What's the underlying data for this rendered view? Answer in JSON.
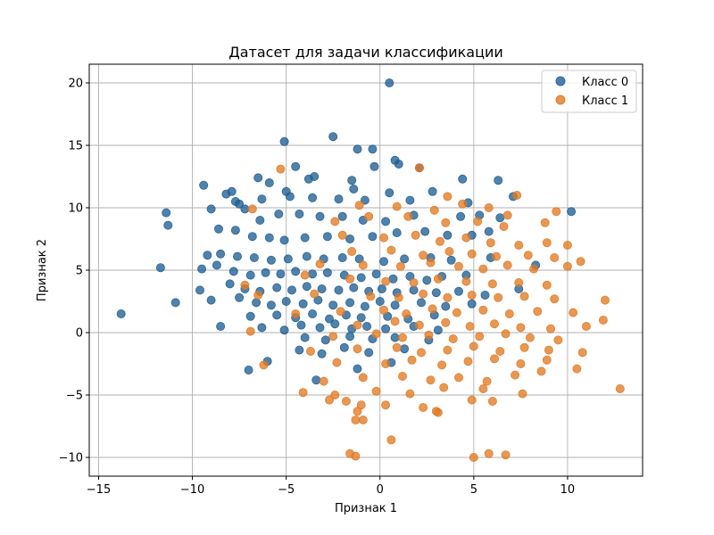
{
  "chart_data": {
    "type": "scatter",
    "title": "Датасет для задачи классификации",
    "xlabel": "Признак 1",
    "ylabel": "Признак 2",
    "xlim": [
      -15.5,
      14.0
    ],
    "ylim": [
      -11.5,
      21.5
    ],
    "xticks": [
      -15,
      -10,
      -5,
      0,
      5,
      10
    ],
    "yticks": [
      -10,
      -5,
      0,
      5,
      10,
      15,
      20
    ],
    "x_tick_labels": [
      "−15",
      "−10",
      "−5",
      "0",
      "5",
      "10"
    ],
    "y_tick_labels": [
      "−10",
      "−5",
      "0",
      "5",
      "10",
      "15",
      "20"
    ],
    "grid": true,
    "legend_position": "top-right",
    "series": [
      {
        "name": "Класс 0",
        "color": "#1f5f93",
        "points": [
          [
            0.5,
            20.0
          ],
          [
            -2.5,
            15.7
          ],
          [
            -5.1,
            15.3
          ],
          [
            -1.2,
            14.7
          ],
          [
            -0.4,
            14.7
          ],
          [
            0.8,
            13.8
          ],
          [
            -4.5,
            13.3
          ],
          [
            2.1,
            13.2
          ],
          [
            -0.3,
            13.3
          ],
          [
            1.0,
            13.5
          ],
          [
            -6.5,
            12.4
          ],
          [
            -5.9,
            12.0
          ],
          [
            -3.5,
            12.5
          ],
          [
            -3.8,
            12.3
          ],
          [
            -1.5,
            12.2
          ],
          [
            4.4,
            12.3
          ],
          [
            6.3,
            12.2
          ],
          [
            -8.2,
            11.1
          ],
          [
            -9.4,
            11.8
          ],
          [
            -7.9,
            11.3
          ],
          [
            -5.0,
            11.3
          ],
          [
            -1.4,
            11.5
          ],
          [
            0.5,
            11.2
          ],
          [
            2.8,
            11.3
          ],
          [
            -11.4,
            9.6
          ],
          [
            -11.3,
            8.6
          ],
          [
            -7.7,
            10.5
          ],
          [
            -7.5,
            10.3
          ],
          [
            -6.3,
            10.7
          ],
          [
            -4.8,
            10.9
          ],
          [
            -3.6,
            10.8
          ],
          [
            -2.2,
            10.7
          ],
          [
            -0.8,
            10.6
          ],
          [
            1.6,
            10.6
          ],
          [
            4.7,
            10.4
          ],
          [
            7.1,
            10.9
          ],
          [
            10.2,
            9.7
          ],
          [
            -9.0,
            9.9
          ],
          [
            -7.2,
            9.9
          ],
          [
            -6.4,
            9.0
          ],
          [
            -5.4,
            9.5
          ],
          [
            -4.3,
            9.5
          ],
          [
            -3.2,
            9.3
          ],
          [
            -2.0,
            9.3
          ],
          [
            -0.9,
            9.0
          ],
          [
            0.3,
            8.9
          ],
          [
            1.8,
            9.4
          ],
          [
            4.3,
            9.3
          ],
          [
            5.3,
            9.4
          ],
          [
            6.4,
            9.2
          ],
          [
            -8.6,
            8.3
          ],
          [
            -7.7,
            8.2
          ],
          [
            -6.8,
            7.7
          ],
          [
            -5.9,
            7.6
          ],
          [
            -5.1,
            7.4
          ],
          [
            -4.0,
            7.6
          ],
          [
            -2.8,
            7.7
          ],
          [
            -1.6,
            7.5
          ],
          [
            -0.4,
            7.7
          ],
          [
            0.9,
            8.0
          ],
          [
            2.4,
            8.1
          ],
          [
            3.6,
            7.8
          ],
          [
            4.9,
            7.8
          ],
          [
            5.8,
            8.1
          ],
          [
            -9.2,
            6.2
          ],
          [
            -8.5,
            6.3
          ],
          [
            -7.6,
            6.1
          ],
          [
            -6.7,
            6.0
          ],
          [
            -5.8,
            5.8
          ],
          [
            -4.9,
            5.9
          ],
          [
            -3.9,
            6.1
          ],
          [
            -3.0,
            5.9
          ],
          [
            -2.0,
            6.0
          ],
          [
            -1.1,
            5.9
          ],
          [
            0.2,
            5.7
          ],
          [
            1.3,
            5.9
          ],
          [
            2.7,
            6.0
          ],
          [
            3.8,
            5.8
          ],
          [
            5.9,
            6.0
          ],
          [
            8.3,
            5.4
          ],
          [
            -11.7,
            5.2
          ],
          [
            -9.5,
            5.1
          ],
          [
            -8.7,
            5.4
          ],
          [
            -7.8,
            4.9
          ],
          [
            -6.9,
            4.6
          ],
          [
            -6.1,
            4.8
          ],
          [
            -5.3,
            4.7
          ],
          [
            -4.5,
            4.9
          ],
          [
            -3.6,
            4.7
          ],
          [
            -2.8,
            4.8
          ],
          [
            -1.9,
            4.6
          ],
          [
            -1.0,
            4.4
          ],
          [
            -0.2,
            4.7
          ],
          [
            0.7,
            4.3
          ],
          [
            1.6,
            4.5
          ],
          [
            2.5,
            4.2
          ],
          [
            3.3,
            4.5
          ],
          [
            4.6,
            4.6
          ],
          [
            -9.6,
            3.4
          ],
          [
            -8.0,
            3.9
          ],
          [
            -7.2,
            3.5
          ],
          [
            -6.4,
            3.3
          ],
          [
            -5.5,
            3.6
          ],
          [
            -4.7,
            3.4
          ],
          [
            -3.9,
            3.7
          ],
          [
            -3.1,
            3.5
          ],
          [
            -2.2,
            3.4
          ],
          [
            -1.4,
            3.6
          ],
          [
            -0.6,
            3.3
          ],
          [
            0.1,
            3.5
          ],
          [
            0.9,
            3.2
          ],
          [
            1.8,
            3.4
          ],
          [
            3.0,
            3.2
          ],
          [
            4.2,
            3.3
          ],
          [
            5.6,
            3.0
          ],
          [
            7.4,
            3.5
          ],
          [
            -10.9,
            2.4
          ],
          [
            -9.0,
            2.6
          ],
          [
            -7.5,
            2.8
          ],
          [
            -6.6,
            2.4
          ],
          [
            -5.8,
            2.2
          ],
          [
            -5.0,
            2.5
          ],
          [
            -4.1,
            2.3
          ],
          [
            -3.3,
            2.6
          ],
          [
            -2.5,
            2.2
          ],
          [
            -1.6,
            2.4
          ],
          [
            -0.8,
            2.1
          ],
          [
            0.0,
            2.5
          ],
          [
            0.8,
            2.2
          ],
          [
            2.2,
            2.4
          ],
          [
            3.5,
            2.1
          ],
          [
            4.9,
            2.3
          ],
          [
            -13.8,
            1.5
          ],
          [
            -6.9,
            1.3
          ],
          [
            -5.5,
            1.4
          ],
          [
            -4.5,
            1.2
          ],
          [
            -3.6,
            1.5
          ],
          [
            -2.7,
            1.1
          ],
          [
            -1.8,
            1.4
          ],
          [
            -1.0,
            1.2
          ],
          [
            0.4,
            1.3
          ],
          [
            1.5,
            1.1
          ],
          [
            2.9,
            1.4
          ],
          [
            -8.5,
            0.5
          ],
          [
            -6.3,
            0.4
          ],
          [
            -5.1,
            0.2
          ],
          [
            -4.2,
            0.6
          ],
          [
            -3.2,
            0.4
          ],
          [
            -2.4,
            0.7
          ],
          [
            -1.5,
            0.3
          ],
          [
            -0.7,
            0.5
          ],
          [
            0.3,
            0.3
          ],
          [
            1.8,
            0.5
          ],
          [
            3.1,
            0.2
          ],
          [
            -4.0,
            -0.4
          ],
          [
            -2.9,
            -0.6
          ],
          [
            -1.6,
            -0.3
          ],
          [
            -0.4,
            -0.5
          ],
          [
            0.8,
            -0.4
          ],
          [
            2.6,
            -0.6
          ],
          [
            -6.0,
            -2.3
          ],
          [
            -4.3,
            -1.4
          ],
          [
            -3.1,
            -1.7
          ],
          [
            -1.9,
            -1.2
          ],
          [
            -0.6,
            -1.6
          ],
          [
            1.3,
            -1.3
          ],
          [
            -7.0,
            -3.0
          ],
          [
            -3.4,
            -3.8
          ],
          [
            -1.2,
            -2.9
          ],
          [
            0.6,
            -2.4
          ]
        ]
      },
      {
        "name": "Класс 1",
        "color": "#e07b24",
        "points": [
          [
            -5.3,
            13.1
          ],
          [
            2.1,
            13.2
          ],
          [
            3.6,
            10.9
          ],
          [
            4.4,
            10.3
          ],
          [
            7.3,
            11.0
          ],
          [
            -6.8,
            9.9
          ],
          [
            -1.1,
            10.2
          ],
          [
            0.9,
            10.1
          ],
          [
            2.9,
            9.8
          ],
          [
            5.8,
            10.0
          ],
          [
            6.8,
            9.4
          ],
          [
            9.4,
            9.7
          ],
          [
            -2.4,
            8.9
          ],
          [
            -0.6,
            9.3
          ],
          [
            1.5,
            9.3
          ],
          [
            3.5,
            8.8
          ],
          [
            5.2,
            8.9
          ],
          [
            6.6,
            8.5
          ],
          [
            8.8,
            8.8
          ],
          [
            -2.0,
            7.8
          ],
          [
            0.2,
            7.6
          ],
          [
            1.9,
            7.8
          ],
          [
            3.2,
            7.3
          ],
          [
            4.6,
            7.6
          ],
          [
            5.9,
            7.2
          ],
          [
            7.4,
            7.0
          ],
          [
            8.9,
            7.2
          ],
          [
            10.0,
            7.0
          ],
          [
            -1.5,
            6.5
          ],
          [
            0.6,
            6.6
          ],
          [
            2.3,
            6.2
          ],
          [
            3.7,
            6.5
          ],
          [
            4.9,
            6.3
          ],
          [
            6.2,
            6.1
          ],
          [
            7.9,
            6.2
          ],
          [
            9.3,
            6.0
          ],
          [
            10.7,
            5.7
          ],
          [
            -3.2,
            5.5
          ],
          [
            -0.9,
            5.4
          ],
          [
            1.1,
            5.3
          ],
          [
            2.7,
            5.6
          ],
          [
            4.2,
            5.3
          ],
          [
            5.5,
            5.1
          ],
          [
            6.8,
            5.4
          ],
          [
            8.2,
            5.1
          ],
          [
            10.0,
            5.3
          ],
          [
            -7.2,
            3.8
          ],
          [
            -4.0,
            4.6
          ],
          [
            -1.6,
            4.3
          ],
          [
            0.3,
            4.1
          ],
          [
            1.8,
            4.0
          ],
          [
            3.1,
            4.3
          ],
          [
            4.6,
            4.1
          ],
          [
            6.0,
            3.9
          ],
          [
            7.4,
            4.0
          ],
          [
            8.9,
            3.8
          ],
          [
            -6.5,
            3.0
          ],
          [
            -3.5,
            3.1
          ],
          [
            -0.5,
            2.9
          ],
          [
            1.0,
            2.8
          ],
          [
            2.3,
            3.1
          ],
          [
            3.6,
            2.8
          ],
          [
            4.9,
            3.0
          ],
          [
            6.3,
            2.8
          ],
          [
            7.7,
            2.9
          ],
          [
            9.3,
            2.7
          ],
          [
            12.0,
            2.6
          ],
          [
            -4.5,
            1.5
          ],
          [
            -2.1,
            1.7
          ],
          [
            0.2,
            1.8
          ],
          [
            1.4,
            1.5
          ],
          [
            2.8,
            1.9
          ],
          [
            4.1,
            1.6
          ],
          [
            5.5,
            1.8
          ],
          [
            6.9,
            1.5
          ],
          [
            8.4,
            1.7
          ],
          [
            10.3,
            1.6
          ],
          [
            -6.9,
            0.1
          ],
          [
            -1.2,
            0.6
          ],
          [
            0.8,
            0.9
          ],
          [
            2.1,
            0.6
          ],
          [
            3.5,
            0.8
          ],
          [
            4.8,
            0.5
          ],
          [
            6.1,
            0.7
          ],
          [
            7.5,
            0.4
          ],
          [
            9.1,
            0.3
          ],
          [
            11.0,
            0.5
          ],
          [
            11.9,
            1.0
          ],
          [
            -2.5,
            -0.3
          ],
          [
            -0.2,
            -0.1
          ],
          [
            1.2,
            -0.4
          ],
          [
            2.6,
            -0.2
          ],
          [
            3.9,
            -0.5
          ],
          [
            5.3,
            -0.3
          ],
          [
            6.7,
            -0.1
          ],
          [
            8.0,
            -0.4
          ],
          [
            9.5,
            -0.6
          ],
          [
            -3.7,
            -1.5
          ],
          [
            -1.2,
            -1.3
          ],
          [
            0.9,
            -1.2
          ],
          [
            2.2,
            -1.6
          ],
          [
            3.6,
            -1.4
          ],
          [
            5.0,
            -1.1
          ],
          [
            6.4,
            -1.5
          ],
          [
            7.7,
            -1.2
          ],
          [
            9.0,
            -1.4
          ],
          [
            10.8,
            -1.6
          ],
          [
            -6.2,
            -2.6
          ],
          [
            -2.3,
            -2.4
          ],
          [
            0.3,
            -2.5
          ],
          [
            1.7,
            -2.2
          ],
          [
            3.3,
            -2.6
          ],
          [
            4.7,
            -2.3
          ],
          [
            6.1,
            -2.1
          ],
          [
            7.5,
            -2.5
          ],
          [
            8.9,
            -2.2
          ],
          [
            10.5,
            -2.9
          ],
          [
            -3.0,
            -3.9
          ],
          [
            -0.9,
            -3.6
          ],
          [
            1.2,
            -3.5
          ],
          [
            2.7,
            -3.8
          ],
          [
            4.2,
            -3.6
          ],
          [
            5.7,
            -3.9
          ],
          [
            7.2,
            -3.4
          ],
          [
            8.6,
            -3.1
          ],
          [
            -4.1,
            -4.8
          ],
          [
            -2.4,
            -5.0
          ],
          [
            -0.2,
            -4.7
          ],
          [
            1.6,
            -4.9
          ],
          [
            3.4,
            -4.4
          ],
          [
            5.5,
            -4.5
          ],
          [
            7.6,
            -4.9
          ],
          [
            12.8,
            -4.5
          ],
          [
            -2.7,
            -5.4
          ],
          [
            -1.8,
            -5.5
          ],
          [
            -1.0,
            -5.8
          ],
          [
            0.3,
            -5.8
          ],
          [
            2.3,
            -6.0
          ],
          [
            3.1,
            -6.4
          ],
          [
            4.9,
            -5.4
          ],
          [
            6.0,
            -5.5
          ],
          [
            -1.2,
            -6.3
          ],
          [
            -0.9,
            -7.0
          ],
          [
            -1.3,
            -7.0
          ],
          [
            3.0,
            -6.3
          ],
          [
            0.6,
            -8.6
          ],
          [
            -1.6,
            -9.7
          ],
          [
            -1.3,
            -9.9
          ],
          [
            5.0,
            -10.0
          ],
          [
            5.8,
            -9.7
          ],
          [
            6.7,
            -9.8
          ]
        ]
      }
    ]
  }
}
